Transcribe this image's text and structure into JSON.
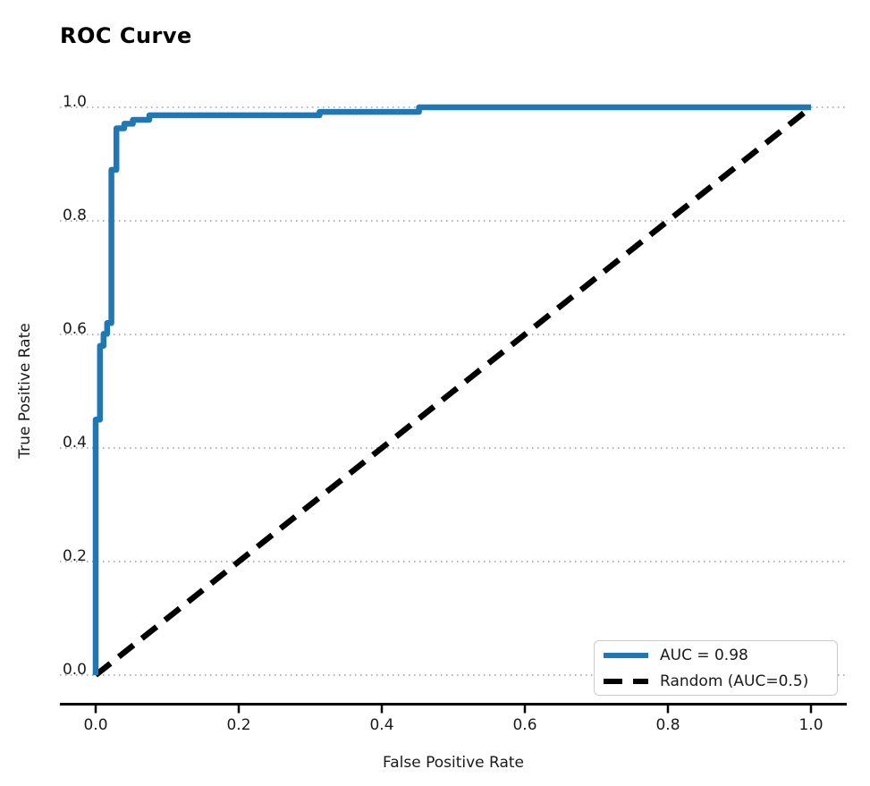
{
  "chart_data": {
    "type": "line",
    "title": "ROC Curve",
    "xlabel": "False Positive Rate",
    "ylabel": "True Positive Rate",
    "xlim": [
      -0.05,
      1.05
    ],
    "ylim": [
      -0.05,
      1.05
    ],
    "x_ticks": [
      0.0,
      0.2,
      0.4,
      0.6,
      0.8,
      1.0
    ],
    "y_ticks": [
      0.0,
      0.2,
      0.4,
      0.6,
      0.8,
      1.0
    ],
    "grid": {
      "horizontal": true,
      "vertical": false,
      "line_style": "dotted",
      "color": "#aaaaaa"
    },
    "legend_position": "lower right",
    "series": [
      {
        "name": "AUC = 0.98",
        "color": "#1f77b4",
        "style": "solid",
        "points": [
          [
            0.0,
            0.0
          ],
          [
            0.0,
            0.45
          ],
          [
            0.006,
            0.45
          ],
          [
            0.006,
            0.58
          ],
          [
            0.011,
            0.58
          ],
          [
            0.011,
            0.601
          ],
          [
            0.016,
            0.601
          ],
          [
            0.016,
            0.62
          ],
          [
            0.022,
            0.62
          ],
          [
            0.022,
            0.89
          ],
          [
            0.029,
            0.89
          ],
          [
            0.029,
            0.963
          ],
          [
            0.04,
            0.963
          ],
          [
            0.04,
            0.971
          ],
          [
            0.052,
            0.971
          ],
          [
            0.052,
            0.978
          ],
          [
            0.075,
            0.978
          ],
          [
            0.075,
            0.986
          ],
          [
            0.313,
            0.986
          ],
          [
            0.313,
            0.992
          ],
          [
            0.452,
            0.992
          ],
          [
            0.452,
            1.0
          ],
          [
            1.0,
            1.0
          ]
        ]
      },
      {
        "name": "Random (AUC=0.5)",
        "color": "#000000",
        "style": "dashed",
        "points": [
          [
            0.0,
            0.0
          ],
          [
            1.0,
            1.0
          ]
        ]
      }
    ],
    "auc_value": 0.98,
    "baseline_auc_value": 0.5
  },
  "colors": {
    "roc_line": "#1f77b4",
    "baseline_line": "#000000",
    "gridline": "#aaaaaa",
    "axis_spine": "#000000",
    "text": "#1a1a1a",
    "legend_border": "#cccccc",
    "background": "#ffffff"
  }
}
